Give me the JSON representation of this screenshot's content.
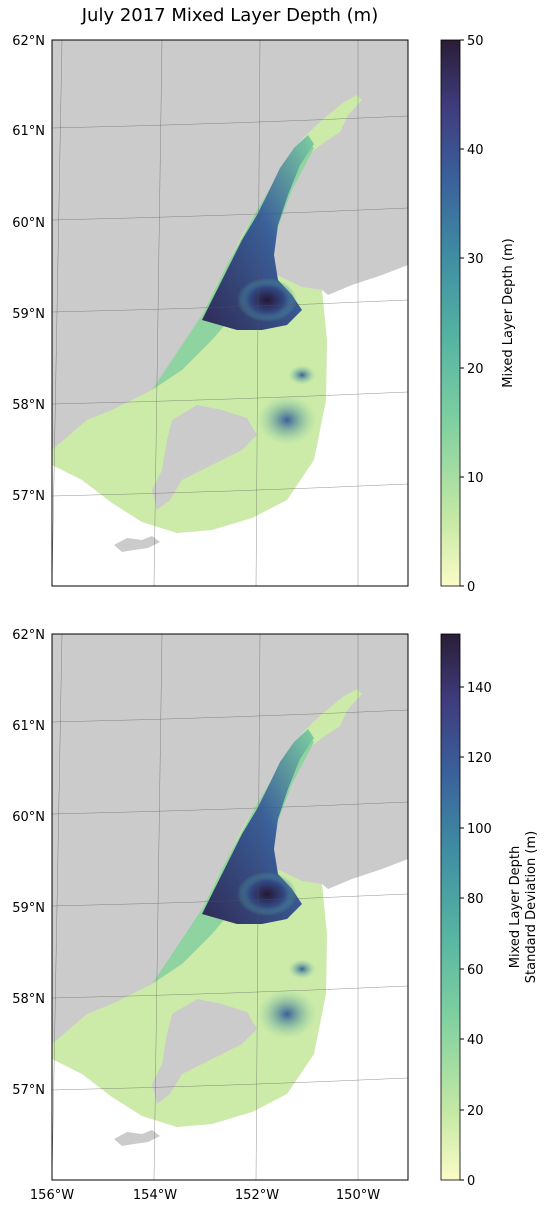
{
  "title": "July 2017 Mixed Layer Depth (m)",
  "latitude_labels": [
    "62°N",
    "61°N",
    "60°N",
    "59°N",
    "58°N",
    "57°N"
  ],
  "longitude_labels": [
    "156°W",
    "154°W",
    "152°W",
    "150°W"
  ],
  "colors": {
    "land": "#cbcbcb",
    "coast": "#ffffff",
    "colormap": [
      "#fbfbc8",
      "#c6e9a4",
      "#7fd0a0",
      "#56b4a2",
      "#3f8ea3",
      "#3a5f9a",
      "#3f3b7d",
      "#2a1d36"
    ]
  },
  "panels": [
    {
      "id": "mean",
      "colorbar": {
        "label": [
          "Mixed Layer Depth (m)"
        ],
        "min": 0,
        "max": 50,
        "ticks": [
          "0",
          "10",
          "20",
          "30",
          "40",
          "50"
        ],
        "colormap": "deep"
      }
    },
    {
      "id": "stdev",
      "colorbar": {
        "label": [
          "Mixed Layer Depth",
          "Standard Deviation (m)"
        ],
        "min": 0,
        "max": 155,
        "ticks": [
          "0",
          "20",
          "40",
          "60",
          "80",
          "100",
          "120",
          "140"
        ],
        "colormap": "deep"
      }
    }
  ]
}
